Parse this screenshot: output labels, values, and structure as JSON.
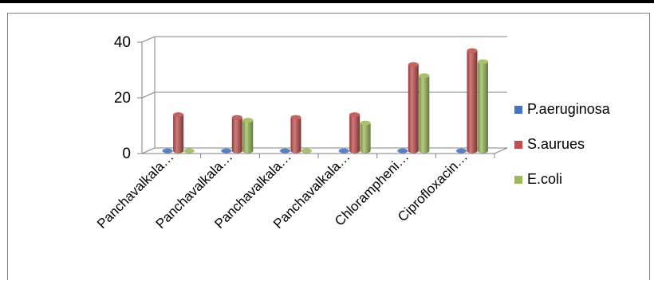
{
  "chart_data": {
    "type": "bar",
    "three_d": true,
    "categories": [
      "Panchavalkala…",
      "Panchavalkala…",
      "Panchavalkala…",
      "Panchavalkala…",
      "Chlorampheni…",
      "Ciprofloxacin…"
    ],
    "series": [
      {
        "name": "P.aeruginosa",
        "color": "#4472C4",
        "values": [
          0,
          0,
          0,
          0,
          0,
          0
        ]
      },
      {
        "name": "S.aurues",
        "color": "#C0504D",
        "values": [
          13,
          12,
          12,
          13,
          31,
          36
        ]
      },
      {
        "name": "E.coli",
        "color": "#9BBB59",
        "values": [
          0,
          11,
          0,
          10,
          27,
          32
        ]
      }
    ],
    "y_ticks": [
      "0",
      "20",
      "40"
    ],
    "ylim": [
      0,
      40
    ],
    "grid": true,
    "legend_position": "right"
  }
}
